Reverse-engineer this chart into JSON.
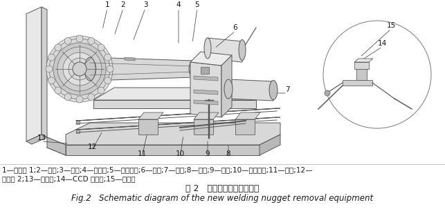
{
  "bg_color": "#ffffff",
  "figure_width": 6.43,
  "figure_height": 3.16,
  "dpi": 100,
  "caption_line1": "1—过渡盘 1;2—轴承;3—卡盘;4—工作台;5—丝杆滑块;6—电机;7—气缸;8—导轨;9—滑块;10—升降装置;11—焊管;12—",
  "caption_line2": "过渡盘 2;13—支撑座;14—CCD 摄像头;15—打磨机",
  "fig_label_cn": "图 2   新型焊瘪清除设备示意",
  "fig_label_en": "Fig.2   Schematic diagram of the new welding nugget removal equipment",
  "text_color": "#1a1a1a",
  "font_size_caption": 7.5,
  "font_size_cn_label": 9.0,
  "font_size_en_label": 8.5,
  "lc": "#555555",
  "lw": 0.7
}
